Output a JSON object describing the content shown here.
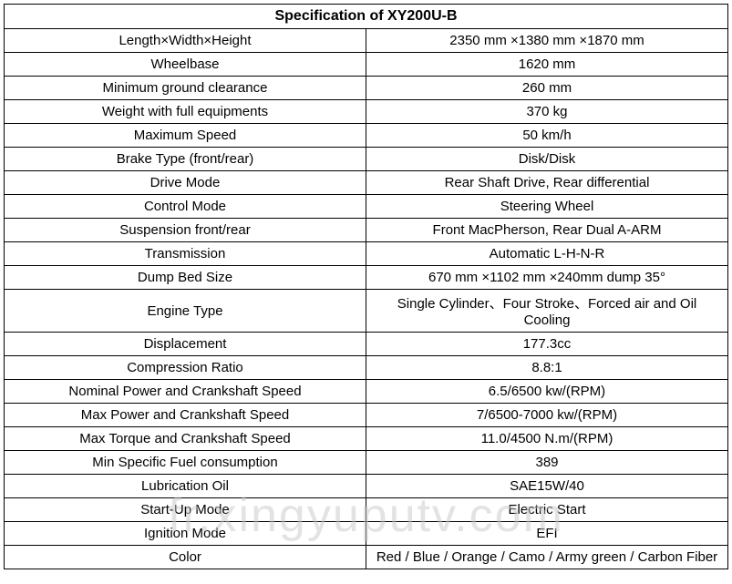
{
  "title": "Specification of XY200U-B",
  "watermark": "fr.xingyuputv.com",
  "table": {
    "column_widths": [
      "50%",
      "50%"
    ],
    "border_color": "#000000",
    "background_color": "#ffffff",
    "title_fontsize": 16,
    "cell_fontsize": 15,
    "text_align": "center",
    "rows": [
      {
        "label": "Length×Width×Height",
        "value": "2350 mm ×1380 mm ×1870 mm"
      },
      {
        "label": "Wheelbase",
        "value": "1620 mm"
      },
      {
        "label": "Minimum ground clearance",
        "value": "260 mm"
      },
      {
        "label": "Weight with full equipments",
        "value": "370 kg"
      },
      {
        "label": "Maximum Speed",
        "value": "50 km/h"
      },
      {
        "label": "Brake Type (front/rear)",
        "value": "Disk/Disk"
      },
      {
        "label": "Drive Mode",
        "value": "Rear Shaft Drive, Rear  differential"
      },
      {
        "label": "Control Mode",
        "value": "Steering Wheel"
      },
      {
        "label": "Suspension front/rear",
        "value": "Front MacPherson, Rear Dual A-ARM"
      },
      {
        "label": "Transmission",
        "value": "Automatic L-H-N-R"
      },
      {
        "label": "Dump Bed Size",
        "value": "670 mm ×1102 mm ×240mm  dump 35°"
      },
      {
        "label": "Engine Type",
        "value": "Single Cylinder、Four Stroke、Forced air and Oil Cooling"
      },
      {
        "label": "Displacement",
        "value": "177.3cc"
      },
      {
        "label": "Compression Ratio",
        "value": "8.8:1"
      },
      {
        "label": "Nominal Power and Crankshaft Speed",
        "value": "6.5/6500 kw/(RPM)"
      },
      {
        "label": "Max Power and Crankshaft Speed",
        "value": "7/6500-7000 kw/(RPM)"
      },
      {
        "label": "Max Torque and Crankshaft Speed",
        "value": "11.0/4500  N.m/(RPM)"
      },
      {
        "label": "Min Specific Fuel consumption",
        "value": "389"
      },
      {
        "label": "Lubrication Oil",
        "value": "SAE15W/40"
      },
      {
        "label": "Start-Up Mode",
        "value": "Electric Start"
      },
      {
        "label": "Ignition Mode",
        "value": "EFI"
      },
      {
        "label": "Color",
        "value": "Red / Blue / Orange / Camo / Army green / Carbon Fiber"
      }
    ]
  }
}
